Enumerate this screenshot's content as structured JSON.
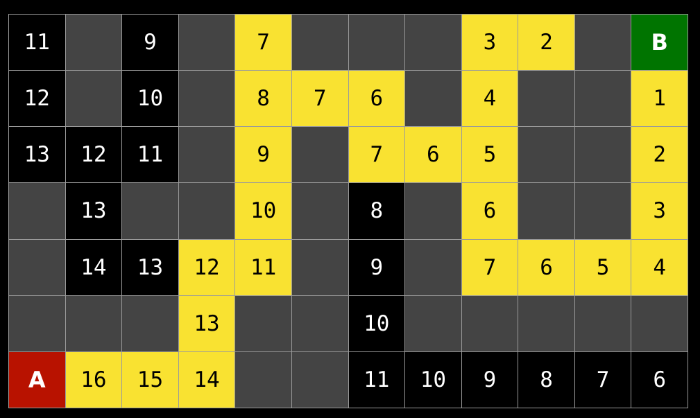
{
  "legend_colors": {
    "k": "#000000",
    "g": "#444444",
    "y": "#f9e231",
    "A": "#b81200",
    "B": "#007400"
  },
  "start_label": "A",
  "goal_label": "B",
  "grid": [
    [
      [
        "k",
        "11"
      ],
      [
        "g",
        ""
      ],
      [
        "k",
        "9"
      ],
      [
        "g",
        ""
      ],
      [
        "y",
        "7"
      ],
      [
        "g",
        ""
      ],
      [
        "g",
        ""
      ],
      [
        "g",
        ""
      ],
      [
        "y",
        "3"
      ],
      [
        "y",
        "2"
      ],
      [
        "g",
        ""
      ],
      [
        "B",
        "B"
      ]
    ],
    [
      [
        "k",
        "12"
      ],
      [
        "g",
        ""
      ],
      [
        "k",
        "10"
      ],
      [
        "g",
        ""
      ],
      [
        "y",
        "8"
      ],
      [
        "y",
        "7"
      ],
      [
        "y",
        "6"
      ],
      [
        "g",
        ""
      ],
      [
        "y",
        "4"
      ],
      [
        "g",
        ""
      ],
      [
        "g",
        ""
      ],
      [
        "y",
        "1"
      ]
    ],
    [
      [
        "k",
        "13"
      ],
      [
        "k",
        "12"
      ],
      [
        "k",
        "11"
      ],
      [
        "g",
        ""
      ],
      [
        "y",
        "9"
      ],
      [
        "g",
        ""
      ],
      [
        "y",
        "7"
      ],
      [
        "y",
        "6"
      ],
      [
        "y",
        "5"
      ],
      [
        "g",
        ""
      ],
      [
        "g",
        ""
      ],
      [
        "y",
        "2"
      ]
    ],
    [
      [
        "g",
        ""
      ],
      [
        "k",
        "13"
      ],
      [
        "g",
        ""
      ],
      [
        "g",
        ""
      ],
      [
        "y",
        "10"
      ],
      [
        "g",
        ""
      ],
      [
        "k",
        "8"
      ],
      [
        "g",
        ""
      ],
      [
        "y",
        "6"
      ],
      [
        "g",
        ""
      ],
      [
        "g",
        ""
      ],
      [
        "y",
        "3"
      ]
    ],
    [
      [
        "g",
        ""
      ],
      [
        "k",
        "14"
      ],
      [
        "k",
        "13"
      ],
      [
        "y",
        "12"
      ],
      [
        "y",
        "11"
      ],
      [
        "g",
        ""
      ],
      [
        "k",
        "9"
      ],
      [
        "g",
        ""
      ],
      [
        "y",
        "7"
      ],
      [
        "y",
        "6"
      ],
      [
        "y",
        "5"
      ],
      [
        "y",
        "4"
      ]
    ],
    [
      [
        "g",
        ""
      ],
      [
        "g",
        ""
      ],
      [
        "g",
        ""
      ],
      [
        "y",
        "13"
      ],
      [
        "g",
        ""
      ],
      [
        "g",
        ""
      ],
      [
        "k",
        "10"
      ],
      [
        "g",
        ""
      ],
      [
        "g",
        ""
      ],
      [
        "g",
        ""
      ],
      [
        "g",
        ""
      ],
      [
        "g",
        ""
      ]
    ],
    [
      [
        "A",
        "A"
      ],
      [
        "y",
        "16"
      ],
      [
        "y",
        "15"
      ],
      [
        "y",
        "14"
      ],
      [
        "g",
        ""
      ],
      [
        "g",
        ""
      ],
      [
        "k",
        "11"
      ],
      [
        "k",
        "10"
      ],
      [
        "k",
        "9"
      ],
      [
        "k",
        "8"
      ],
      [
        "k",
        "7"
      ],
      [
        "k",
        "6"
      ]
    ]
  ]
}
